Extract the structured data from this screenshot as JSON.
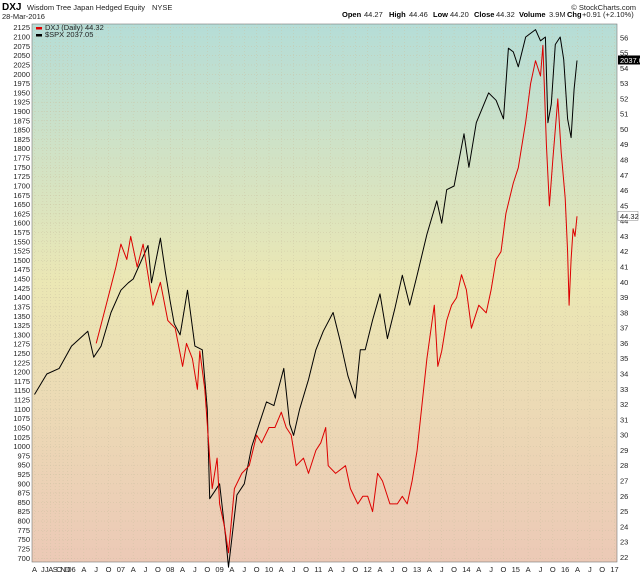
{
  "header": {
    "symbol": "DXJ",
    "name": "Wisdom Tree Japan Hedged Equity",
    "exchange": "NYSE",
    "date": "28-Mar-2016",
    "open_label": "Open",
    "open": "44.27",
    "high_label": "High",
    "high": "44.46",
    "low_label": "Low",
    "low": "44.20",
    "close_label": "Close",
    "close": "44.32",
    "volume_label": "Volume",
    "volume": "3.9M",
    "chg_label": "Chg",
    "chg": "+0.91 (+2.10%)",
    "brand": "© StockCharts.com"
  },
  "legend": {
    "dxj": "DXJ (Daily) 44.32",
    "spx": "$SPX 2037.05"
  },
  "colors": {
    "dxj": "#dd0000",
    "spx": "#000000",
    "bg_top": "#b5ddd7",
    "bg_mid": "#ebe7b4",
    "bg_bottom": "#ecc9b6"
  },
  "chart_data": {
    "type": "line",
    "left_axis": {
      "ticks": [
        700,
        725,
        750,
        775,
        800,
        825,
        850,
        875,
        900,
        925,
        950,
        975,
        1000,
        1025,
        1050,
        1075,
        1100,
        1125,
        1150,
        1175,
        1200,
        1225,
        1250,
        1275,
        1300,
        1325,
        1350,
        1375,
        1400,
        1425,
        1450,
        1475,
        1500,
        1525,
        1550,
        1575,
        1600,
        1625,
        1650,
        1675,
        1700,
        1725,
        1750,
        1775,
        1800,
        1825,
        1850,
        1875,
        1900,
        1925,
        1950,
        1975,
        2000,
        2025,
        2050,
        2075,
        2100,
        2125
      ],
      "range": [
        690,
        2135
      ]
    },
    "right_axis": {
      "ticks": [
        22,
        23,
        24,
        25,
        26,
        27,
        28,
        29,
        30,
        31,
        32,
        33,
        34,
        35,
        36,
        37,
        38,
        39,
        40,
        41,
        42,
        43,
        44,
        45,
        46,
        47,
        48,
        49,
        50,
        51,
        52,
        53,
        54,
        55,
        56
      ],
      "range": [
        21.7,
        56.9
      ],
      "last_label": "44.32",
      "spx_last_label": "2037.0"
    },
    "x_ticks": [
      {
        "label": "A",
        "t": 2005.25
      },
      {
        "label": "J",
        "t": 2005.42
      },
      {
        "label": "J",
        "t": 2005.5
      },
      {
        "label": "A",
        "t": 2005.58
      },
      {
        "label": "S",
        "t": 2005.67
      },
      {
        "label": "O",
        "t": 2005.75
      },
      {
        "label": "N",
        "t": 2005.83
      },
      {
        "label": "D",
        "t": 2005.92
      },
      {
        "label": "06",
        "t": 2006.0
      },
      {
        "label": "A",
        "t": 2006.25
      },
      {
        "label": "J",
        "t": 2006.5
      },
      {
        "label": "O",
        "t": 2006.75
      },
      {
        "label": "07",
        "t": 2007.0
      },
      {
        "label": "A",
        "t": 2007.25
      },
      {
        "label": "J",
        "t": 2007.5
      },
      {
        "label": "O",
        "t": 2007.75
      },
      {
        "label": "08",
        "t": 2008.0
      },
      {
        "label": "A",
        "t": 2008.25
      },
      {
        "label": "J",
        "t": 2008.5
      },
      {
        "label": "O",
        "t": 2008.75
      },
      {
        "label": "09",
        "t": 2009.0
      },
      {
        "label": "A",
        "t": 2009.25
      },
      {
        "label": "J",
        "t": 2009.5
      },
      {
        "label": "O",
        "t": 2009.75
      },
      {
        "label": "10",
        "t": 2010.0
      },
      {
        "label": "A",
        "t": 2010.25
      },
      {
        "label": "J",
        "t": 2010.5
      },
      {
        "label": "O",
        "t": 2010.75
      },
      {
        "label": "11",
        "t": 2011.0
      },
      {
        "label": "A",
        "t": 2011.25
      },
      {
        "label": "J",
        "t": 2011.5
      },
      {
        "label": "O",
        "t": 2011.75
      },
      {
        "label": "12",
        "t": 2012.0
      },
      {
        "label": "A",
        "t": 2012.25
      },
      {
        "label": "J",
        "t": 2012.5
      },
      {
        "label": "O",
        "t": 2012.75
      },
      {
        "label": "13",
        "t": 2013.0
      },
      {
        "label": "A",
        "t": 2013.25
      },
      {
        "label": "J",
        "t": 2013.5
      },
      {
        "label": "O",
        "t": 2013.75
      },
      {
        "label": "14",
        "t": 2014.0
      },
      {
        "label": "A",
        "t": 2014.25
      },
      {
        "label": "J",
        "t": 2014.5
      },
      {
        "label": "O",
        "t": 2014.75
      },
      {
        "label": "15",
        "t": 2015.0
      },
      {
        "label": "A",
        "t": 2015.25
      },
      {
        "label": "J",
        "t": 2015.5
      },
      {
        "label": "O",
        "t": 2015.75
      },
      {
        "label": "16",
        "t": 2016.0
      },
      {
        "label": "A",
        "t": 2016.25
      },
      {
        "label": "J",
        "t": 2016.5
      },
      {
        "label": "O",
        "t": 2016.75
      },
      {
        "label": "17",
        "t": 2017.0
      }
    ],
    "x_range": [
      2005.2,
      2017.05
    ],
    "series": [
      {
        "name": "$SPX 2037.05",
        "axis": "left",
        "points": [
          [
            2005.25,
            1140
          ],
          [
            2005.5,
            1195
          ],
          [
            2005.75,
            1210
          ],
          [
            2006.0,
            1270
          ],
          [
            2006.33,
            1310
          ],
          [
            2006.45,
            1240
          ],
          [
            2006.6,
            1270
          ],
          [
            2006.8,
            1360
          ],
          [
            2007.0,
            1420
          ],
          [
            2007.15,
            1440
          ],
          [
            2007.25,
            1450
          ],
          [
            2007.45,
            1510
          ],
          [
            2007.55,
            1540
          ],
          [
            2007.62,
            1440
          ],
          [
            2007.8,
            1560
          ],
          [
            2007.9,
            1470
          ],
          [
            2008.0,
            1390
          ],
          [
            2008.08,
            1330
          ],
          [
            2008.2,
            1300
          ],
          [
            2008.35,
            1420
          ],
          [
            2008.5,
            1270
          ],
          [
            2008.65,
            1260
          ],
          [
            2008.75,
            1100
          ],
          [
            2008.8,
            860
          ],
          [
            2008.9,
            880
          ],
          [
            2009.0,
            900
          ],
          [
            2009.12,
            760
          ],
          [
            2009.18,
            676
          ],
          [
            2009.35,
            870
          ],
          [
            2009.5,
            900
          ],
          [
            2009.65,
            1000
          ],
          [
            2009.8,
            1060
          ],
          [
            2009.95,
            1120
          ],
          [
            2010.1,
            1110
          ],
          [
            2010.3,
            1210
          ],
          [
            2010.42,
            1060
          ],
          [
            2010.5,
            1030
          ],
          [
            2010.62,
            1100
          ],
          [
            2010.8,
            1180
          ],
          [
            2010.95,
            1260
          ],
          [
            2011.1,
            1310
          ],
          [
            2011.3,
            1360
          ],
          [
            2011.45,
            1280
          ],
          [
            2011.6,
            1190
          ],
          [
            2011.75,
            1130
          ],
          [
            2011.85,
            1260
          ],
          [
            2011.95,
            1260
          ],
          [
            2012.1,
            1340
          ],
          [
            2012.25,
            1410
          ],
          [
            2012.4,
            1290
          ],
          [
            2012.55,
            1370
          ],
          [
            2012.7,
            1460
          ],
          [
            2012.85,
            1380
          ],
          [
            2013.0,
            1460
          ],
          [
            2013.2,
            1570
          ],
          [
            2013.4,
            1660
          ],
          [
            2013.5,
            1600
          ],
          [
            2013.6,
            1690
          ],
          [
            2013.75,
            1700
          ],
          [
            2013.95,
            1840
          ],
          [
            2014.05,
            1750
          ],
          [
            2014.2,
            1870
          ],
          [
            2014.45,
            1950
          ],
          [
            2014.6,
            1930
          ],
          [
            2014.75,
            1880
          ],
          [
            2014.85,
            2070
          ],
          [
            2014.95,
            2060
          ],
          [
            2015.05,
            2020
          ],
          [
            2015.2,
            2100
          ],
          [
            2015.4,
            2120
          ],
          [
            2015.5,
            2090
          ],
          [
            2015.6,
            2100
          ],
          [
            2015.65,
            1870
          ],
          [
            2015.72,
            1920
          ],
          [
            2015.8,
            2080
          ],
          [
            2015.9,
            2100
          ],
          [
            2015.97,
            2040
          ],
          [
            2016.05,
            1880
          ],
          [
            2016.12,
            1830
          ],
          [
            2016.18,
            1960
          ],
          [
            2016.24,
            2037
          ]
        ]
      },
      {
        "name": "DXJ (Daily) 44.32",
        "axis": "right",
        "points": [
          [
            2006.5,
            36.0
          ],
          [
            2006.7,
            38.5
          ],
          [
            2006.9,
            41.0
          ],
          [
            2007.0,
            42.5
          ],
          [
            2007.12,
            41.5
          ],
          [
            2007.2,
            43.0
          ],
          [
            2007.33,
            41.0
          ],
          [
            2007.45,
            42.5
          ],
          [
            2007.55,
            40.5
          ],
          [
            2007.65,
            38.5
          ],
          [
            2007.8,
            40.0
          ],
          [
            2007.95,
            37.5
          ],
          [
            2008.1,
            37.0
          ],
          [
            2008.25,
            34.5
          ],
          [
            2008.33,
            36.0
          ],
          [
            2008.45,
            35.0
          ],
          [
            2008.55,
            33.0
          ],
          [
            2008.6,
            35.5
          ],
          [
            2008.7,
            33.0
          ],
          [
            2008.8,
            28.5
          ],
          [
            2008.85,
            26.5
          ],
          [
            2008.95,
            28.5
          ],
          [
            2009.0,
            25.5
          ],
          [
            2009.1,
            24.0
          ],
          [
            2009.18,
            22.3
          ],
          [
            2009.3,
            26.5
          ],
          [
            2009.45,
            27.5
          ],
          [
            2009.6,
            28.0
          ],
          [
            2009.75,
            30.0
          ],
          [
            2009.85,
            29.5
          ],
          [
            2010.0,
            30.5
          ],
          [
            2010.12,
            30.5
          ],
          [
            2010.25,
            31.5
          ],
          [
            2010.35,
            30.5
          ],
          [
            2010.45,
            30.0
          ],
          [
            2010.55,
            28.0
          ],
          [
            2010.7,
            28.5
          ],
          [
            2010.8,
            27.5
          ],
          [
            2010.95,
            29.0
          ],
          [
            2011.05,
            29.5
          ],
          [
            2011.15,
            30.5
          ],
          [
            2011.2,
            28.0
          ],
          [
            2011.35,
            27.5
          ],
          [
            2011.55,
            28.0
          ],
          [
            2011.65,
            26.5
          ],
          [
            2011.8,
            25.5
          ],
          [
            2011.9,
            26.0
          ],
          [
            2012.0,
            26.0
          ],
          [
            2012.1,
            25.0
          ],
          [
            2012.2,
            27.5
          ],
          [
            2012.3,
            27.0
          ],
          [
            2012.45,
            25.5
          ],
          [
            2012.6,
            25.5
          ],
          [
            2012.7,
            26.0
          ],
          [
            2012.8,
            25.5
          ],
          [
            2012.9,
            27.0
          ],
          [
            2013.0,
            29.0
          ],
          [
            2013.1,
            32.0
          ],
          [
            2013.2,
            35.0
          ],
          [
            2013.35,
            38.5
          ],
          [
            2013.42,
            34.5
          ],
          [
            2013.5,
            35.5
          ],
          [
            2013.6,
            37.5
          ],
          [
            2013.7,
            38.5
          ],
          [
            2013.8,
            39.0
          ],
          [
            2013.9,
            40.5
          ],
          [
            2014.0,
            39.5
          ],
          [
            2014.1,
            37.0
          ],
          [
            2014.25,
            38.5
          ],
          [
            2014.4,
            38.0
          ],
          [
            2014.5,
            39.5
          ],
          [
            2014.6,
            41.5
          ],
          [
            2014.7,
            42.0
          ],
          [
            2014.8,
            44.5
          ],
          [
            2014.95,
            46.5
          ],
          [
            2015.05,
            47.5
          ],
          [
            2015.2,
            50.5
          ],
          [
            2015.3,
            53.0
          ],
          [
            2015.4,
            54.5
          ],
          [
            2015.5,
            53.5
          ],
          [
            2015.55,
            55.5
          ],
          [
            2015.62,
            49.0
          ],
          [
            2015.68,
            45.0
          ],
          [
            2015.75,
            48.0
          ],
          [
            2015.85,
            52.0
          ],
          [
            2015.92,
            48.5
          ],
          [
            2016.0,
            45.5
          ],
          [
            2016.05,
            42.0
          ],
          [
            2016.08,
            38.5
          ],
          [
            2016.12,
            41.5
          ],
          [
            2016.16,
            43.5
          ],
          [
            2016.2,
            43.0
          ],
          [
            2016.24,
            44.32
          ]
        ]
      }
    ]
  }
}
